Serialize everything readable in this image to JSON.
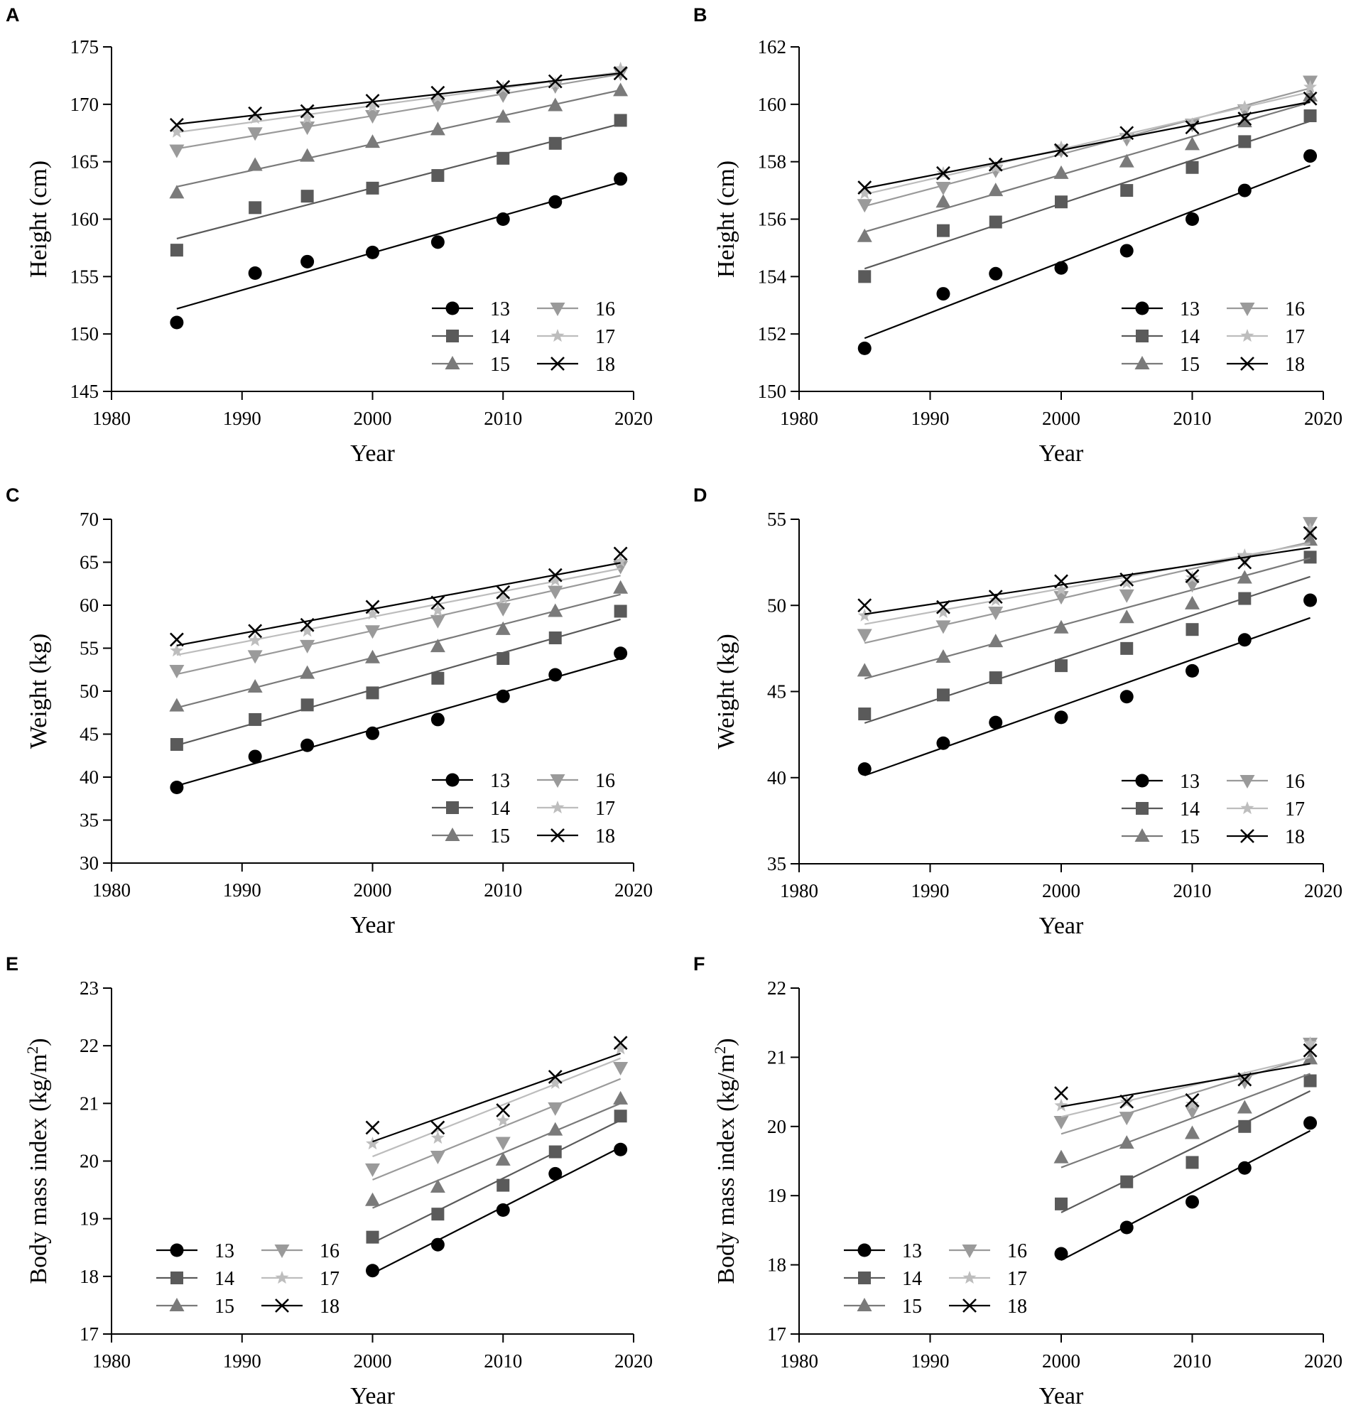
{
  "figure": {
    "series_names": [
      "13",
      "14",
      "15",
      "16",
      "17",
      "18"
    ],
    "series_colors": [
      "#000000",
      "#5a5a5a",
      "#7a7a7a",
      "#9a9a9a",
      "#bdbdbd",
      "#000000"
    ],
    "series_markers": [
      "circle",
      "square",
      "triangle-up",
      "triangle-down",
      "star",
      "x"
    ]
  },
  "chart_data": [
    {
      "id": "A",
      "panel_label": "A",
      "type": "scatter",
      "xlabel": "Year",
      "ylabel": "Height (cm)",
      "xlim": [
        1980,
        2020
      ],
      "ylim": [
        145,
        175
      ],
      "xticks": [
        1980,
        1990,
        2000,
        2010,
        2020
      ],
      "yticks": [
        145,
        150,
        155,
        160,
        165,
        170,
        175
      ],
      "x": [
        1985,
        1991,
        1995,
        2000,
        2005,
        2010,
        2014,
        2019
      ],
      "legend_position": "bottom-right",
      "series": [
        {
          "name": "13",
          "values": [
            151.0,
            155.3,
            156.3,
            157.1,
            158.0,
            160.0,
            161.5,
            163.5
          ]
        },
        {
          "name": "14",
          "values": [
            157.3,
            161.0,
            162.0,
            162.7,
            163.8,
            165.3,
            166.6,
            168.6
          ]
        },
        {
          "name": "15",
          "values": [
            162.3,
            164.7,
            165.5,
            166.7,
            167.8,
            168.9,
            169.9,
            171.2
          ]
        },
        {
          "name": "16",
          "values": [
            166.0,
            167.5,
            168.0,
            169.0,
            170.0,
            170.8,
            171.6,
            172.7
          ]
        },
        {
          "name": "17",
          "values": [
            167.6,
            168.8,
            168.8,
            169.8,
            170.6,
            171.4,
            171.8,
            173.1
          ]
        },
        {
          "name": "18",
          "values": [
            168.2,
            169.2,
            169.4,
            170.3,
            171.0,
            171.5,
            172.0,
            172.7
          ]
        }
      ]
    },
    {
      "id": "B",
      "panel_label": "B",
      "type": "scatter",
      "xlabel": "Year",
      "ylabel": "Height (cm)",
      "xlim": [
        1980,
        2020
      ],
      "ylim": [
        150,
        162
      ],
      "xticks": [
        1980,
        1990,
        2000,
        2010,
        2020
      ],
      "yticks": [
        150,
        152,
        154,
        156,
        158,
        160,
        162
      ],
      "x": [
        1985,
        1991,
        1995,
        2000,
        2005,
        2010,
        2014,
        2019
      ],
      "legend_position": "bottom-right",
      "series": [
        {
          "name": "13",
          "values": [
            151.5,
            153.4,
            154.1,
            154.3,
            154.9,
            156.0,
            157.0,
            158.2
          ]
        },
        {
          "name": "14",
          "values": [
            154.0,
            155.6,
            155.9,
            156.6,
            157.0,
            157.8,
            158.7,
            159.6
          ]
        },
        {
          "name": "15",
          "values": [
            155.4,
            156.6,
            157.0,
            157.6,
            158.0,
            158.6,
            159.4,
            160.3
          ]
        },
        {
          "name": "16",
          "values": [
            156.5,
            157.1,
            157.7,
            158.4,
            158.8,
            159.3,
            159.8,
            160.8
          ]
        },
        {
          "name": "17",
          "values": [
            156.9,
            157.6,
            157.8,
            158.5,
            158.9,
            159.3,
            159.9,
            160.6
          ]
        },
        {
          "name": "18",
          "values": [
            157.1,
            157.6,
            157.9,
            158.4,
            159.0,
            159.2,
            159.5,
            160.2
          ]
        }
      ]
    },
    {
      "id": "C",
      "panel_label": "C",
      "type": "scatter",
      "xlabel": "Year",
      "ylabel": "Weight (kg)",
      "xlim": [
        1980,
        2020
      ],
      "ylim": [
        30,
        70
      ],
      "xticks": [
        1980,
        1990,
        2000,
        2010,
        2020
      ],
      "yticks": [
        30,
        35,
        40,
        45,
        50,
        55,
        60,
        65,
        70
      ],
      "x": [
        1985,
        1991,
        1995,
        2000,
        2005,
        2010,
        2014,
        2019
      ],
      "legend_position": "bottom-right",
      "series": [
        {
          "name": "13",
          "values": [
            38.8,
            42.4,
            43.7,
            45.1,
            46.7,
            49.4,
            51.9,
            54.4
          ]
        },
        {
          "name": "14",
          "values": [
            43.8,
            46.7,
            48.4,
            49.8,
            51.5,
            53.8,
            56.2,
            59.3
          ]
        },
        {
          "name": "15",
          "values": [
            48.3,
            50.5,
            52.1,
            53.9,
            55.2,
            57.2,
            59.3,
            62.0
          ]
        },
        {
          "name": "16",
          "values": [
            52.4,
            54.1,
            55.3,
            57.0,
            58.2,
            59.6,
            61.6,
            64.5
          ]
        },
        {
          "name": "17",
          "values": [
            54.7,
            55.9,
            57.0,
            59.0,
            59.4,
            60.8,
            62.9,
            65.1
          ]
        },
        {
          "name": "18",
          "values": [
            56.0,
            57.0,
            57.7,
            59.8,
            60.3,
            61.5,
            63.5,
            66.0
          ]
        }
      ]
    },
    {
      "id": "D",
      "panel_label": "D",
      "type": "scatter",
      "xlabel": "Year",
      "ylabel": "Weight (kg)",
      "xlim": [
        1980,
        2020
      ],
      "ylim": [
        35,
        55
      ],
      "xticks": [
        1980,
        1990,
        2000,
        2010,
        2020
      ],
      "yticks": [
        35,
        40,
        45,
        50,
        55
      ],
      "x": [
        1985,
        1991,
        1995,
        2000,
        2005,
        2010,
        2014,
        2019
      ],
      "legend_position": "bottom-right",
      "series": [
        {
          "name": "13",
          "values": [
            40.5,
            42.0,
            43.2,
            43.5,
            44.7,
            46.2,
            48.0,
            50.3
          ]
        },
        {
          "name": "14",
          "values": [
            43.7,
            44.8,
            45.8,
            46.5,
            47.5,
            48.6,
            50.4,
            52.8
          ]
        },
        {
          "name": "15",
          "values": [
            46.2,
            47.0,
            47.9,
            48.7,
            49.3,
            50.1,
            51.6,
            53.8
          ]
        },
        {
          "name": "16",
          "values": [
            48.3,
            48.8,
            49.6,
            50.5,
            50.6,
            51.2,
            52.7,
            54.8
          ]
        },
        {
          "name": "17",
          "values": [
            49.4,
            49.6,
            50.3,
            50.9,
            51.3,
            51.6,
            52.9,
            54.4
          ]
        },
        {
          "name": "18",
          "values": [
            50.0,
            49.9,
            50.5,
            51.4,
            51.5,
            51.7,
            52.5,
            54.2
          ]
        }
      ]
    },
    {
      "id": "E",
      "panel_label": "E",
      "type": "scatter",
      "xlabel": "Year",
      "ylabel_main": "Body mass index (kg/m",
      "ylabel_sup": "2",
      "ylabel_end": ")",
      "xlim": [
        1980,
        2020
      ],
      "ylim": [
        17,
        23
      ],
      "xticks": [
        1980,
        1990,
        2000,
        2010,
        2020
      ],
      "yticks": [
        17,
        18,
        19,
        20,
        21,
        22,
        23
      ],
      "x": [
        2000,
        2005,
        2010,
        2014,
        2019
      ],
      "legend_position": "bottom-left",
      "series": [
        {
          "name": "13",
          "values": [
            18.1,
            18.55,
            19.15,
            19.78,
            20.2
          ]
        },
        {
          "name": "14",
          "values": [
            18.68,
            19.08,
            19.58,
            20.16,
            20.78
          ]
        },
        {
          "name": "15",
          "values": [
            19.32,
            19.55,
            20.02,
            20.54,
            21.08
          ]
        },
        {
          "name": "16",
          "values": [
            19.86,
            20.08,
            20.32,
            20.92,
            21.62
          ]
        },
        {
          "name": "17",
          "values": [
            20.3,
            20.4,
            20.7,
            21.35,
            21.95
          ]
        },
        {
          "name": "18",
          "values": [
            20.58,
            20.58,
            20.88,
            21.46,
            22.05
          ]
        }
      ]
    },
    {
      "id": "F",
      "panel_label": "F",
      "type": "scatter",
      "xlabel": "Year",
      "ylabel_main": "Body mass index (kg/m",
      "ylabel_sup": "2",
      "ylabel_end": ")",
      "xlim": [
        1980,
        2020
      ],
      "ylim": [
        17,
        22
      ],
      "xticks": [
        1980,
        1990,
        2000,
        2010,
        2020
      ],
      "yticks": [
        17,
        18,
        19,
        20,
        21,
        22
      ],
      "x": [
        2000,
        2005,
        2010,
        2014,
        2019
      ],
      "legend_position": "bottom-left",
      "series": [
        {
          "name": "13",
          "values": [
            18.16,
            18.54,
            18.91,
            19.4,
            20.05
          ]
        },
        {
          "name": "14",
          "values": [
            18.88,
            19.2,
            19.48,
            20.0,
            20.66
          ]
        },
        {
          "name": "15",
          "values": [
            19.55,
            19.76,
            19.9,
            20.27,
            20.98
          ]
        },
        {
          "name": "16",
          "values": [
            20.07,
            20.13,
            20.22,
            20.65,
            21.2
          ]
        },
        {
          "name": "17",
          "values": [
            20.3,
            20.35,
            20.32,
            20.7,
            21.2
          ]
        },
        {
          "name": "18",
          "values": [
            20.48,
            20.36,
            20.38,
            20.68,
            21.1
          ]
        }
      ]
    }
  ]
}
